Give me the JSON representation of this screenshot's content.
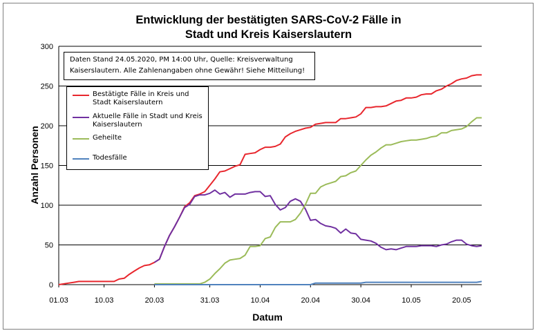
{
  "chart_data": {
    "type": "line",
    "title_line1": "Entwicklung der bestätigten SARS-CoV-2 Fälle in",
    "title_line2": "Stadt und Kreis Kaiserslautern",
    "xlabel": "Datum",
    "ylabel": "Anzahl Personen",
    "ylim": [
      0,
      300
    ],
    "yticks": [
      "0",
      "50",
      "100",
      "150",
      "200",
      "250",
      "300"
    ],
    "xlim": [
      "2020-03-01",
      "2020-05-24"
    ],
    "xticks": [
      {
        "date": "2020-03-01",
        "label": "01.03"
      },
      {
        "date": "2020-03-10",
        "label": "10.03"
      },
      {
        "date": "2020-03-20",
        "label": "20.03"
      },
      {
        "date": "2020-03-31",
        "label": "31.03"
      },
      {
        "date": "2020-04-10",
        "label": "10.04"
      },
      {
        "date": "2020-04-20",
        "label": "20.04"
      },
      {
        "date": "2020-04-30",
        "label": "30.04"
      },
      {
        "date": "2020-05-10",
        "label": "10.05"
      },
      {
        "date": "2020-05-20",
        "label": "20.05"
      }
    ],
    "grid": "horizontal",
    "legend_position": "top-left",
    "annotation": "Daten Stand 24.05.2020, PM 14:00 Uhr, Quelle: Kreisverwaltung Kaiserslautern. Alle Zahlenangaben ohne Gewähr! Siehe Mitteilung!",
    "series": [
      {
        "name": "Bestätigte Fälle in Kreis und Stadt Kaiserslautern",
        "color": "#e8262d",
        "points": [
          [
            "2020-03-01",
            0
          ],
          [
            "2020-03-02",
            1
          ],
          [
            "2020-03-03",
            2
          ],
          [
            "2020-03-04",
            3
          ],
          [
            "2020-03-05",
            4
          ],
          [
            "2020-03-06",
            4
          ],
          [
            "2020-03-07",
            4
          ],
          [
            "2020-03-08",
            4
          ],
          [
            "2020-03-09",
            4
          ],
          [
            "2020-03-10",
            4
          ],
          [
            "2020-03-11",
            4
          ],
          [
            "2020-03-12",
            4
          ],
          [
            "2020-03-13",
            7
          ],
          [
            "2020-03-14",
            8
          ],
          [
            "2020-03-15",
            13
          ],
          [
            "2020-03-16",
            17
          ],
          [
            "2020-03-17",
            21
          ],
          [
            "2020-03-18",
            24
          ],
          [
            "2020-03-19",
            25
          ],
          [
            "2020-03-20",
            28
          ],
          [
            "2020-03-21",
            32
          ],
          [
            "2020-03-22",
            48
          ],
          [
            "2020-03-23",
            62
          ],
          [
            "2020-03-24",
            73
          ],
          [
            "2020-03-25",
            85
          ],
          [
            "2020-03-26",
            98
          ],
          [
            "2020-03-27",
            103
          ],
          [
            "2020-03-28",
            112
          ],
          [
            "2020-03-29",
            114
          ],
          [
            "2020-03-30",
            117
          ],
          [
            "2020-03-31",
            125
          ],
          [
            "2020-04-01",
            133
          ],
          [
            "2020-04-02",
            142
          ],
          [
            "2020-04-03",
            143
          ],
          [
            "2020-04-04",
            146
          ],
          [
            "2020-04-05",
            149
          ],
          [
            "2020-04-06",
            151
          ],
          [
            "2020-04-07",
            164
          ],
          [
            "2020-04-08",
            165
          ],
          [
            "2020-04-09",
            166
          ],
          [
            "2020-04-10",
            170
          ],
          [
            "2020-04-11",
            173
          ],
          [
            "2020-04-12",
            173
          ],
          [
            "2020-04-13",
            174
          ],
          [
            "2020-04-14",
            177
          ],
          [
            "2020-04-15",
            186
          ],
          [
            "2020-04-16",
            190
          ],
          [
            "2020-04-17",
            193
          ],
          [
            "2020-04-18",
            195
          ],
          [
            "2020-04-19",
            197
          ],
          [
            "2020-04-20",
            198
          ],
          [
            "2020-04-21",
            202
          ],
          [
            "2020-04-22",
            203
          ],
          [
            "2020-04-23",
            204
          ],
          [
            "2020-04-24",
            204
          ],
          [
            "2020-04-25",
            204
          ],
          [
            "2020-04-26",
            209
          ],
          [
            "2020-04-27",
            209
          ],
          [
            "2020-04-28",
            210
          ],
          [
            "2020-04-29",
            211
          ],
          [
            "2020-04-30",
            215
          ],
          [
            "2020-05-01",
            223
          ],
          [
            "2020-05-02",
            223
          ],
          [
            "2020-05-03",
            224
          ],
          [
            "2020-05-04",
            224
          ],
          [
            "2020-05-05",
            225
          ],
          [
            "2020-05-06",
            228
          ],
          [
            "2020-05-07",
            231
          ],
          [
            "2020-05-08",
            232
          ],
          [
            "2020-05-09",
            235
          ],
          [
            "2020-05-10",
            235
          ],
          [
            "2020-05-11",
            236
          ],
          [
            "2020-05-12",
            239
          ],
          [
            "2020-05-13",
            240
          ],
          [
            "2020-05-14",
            240
          ],
          [
            "2020-05-15",
            244
          ],
          [
            "2020-05-16",
            246
          ],
          [
            "2020-05-17",
            250
          ],
          [
            "2020-05-18",
            253
          ],
          [
            "2020-05-19",
            257
          ],
          [
            "2020-05-20",
            259
          ],
          [
            "2020-05-21",
            260
          ],
          [
            "2020-05-22",
            263
          ],
          [
            "2020-05-23",
            264
          ],
          [
            "2020-05-24",
            264
          ]
        ]
      },
      {
        "name": "Aktuelle Fälle in Stadt und Kreis Kaiserslautern",
        "color": "#7030a0",
        "points": [
          [
            "2020-03-20",
            28
          ],
          [
            "2020-03-21",
            32
          ],
          [
            "2020-03-22",
            48
          ],
          [
            "2020-03-23",
            62
          ],
          [
            "2020-03-24",
            73
          ],
          [
            "2020-03-25",
            85
          ],
          [
            "2020-03-26",
            97
          ],
          [
            "2020-03-27",
            101
          ],
          [
            "2020-03-28",
            111
          ],
          [
            "2020-03-29",
            113
          ],
          [
            "2020-03-30",
            113
          ],
          [
            "2020-03-31",
            115
          ],
          [
            "2020-04-01",
            119
          ],
          [
            "2020-04-02",
            114
          ],
          [
            "2020-04-03",
            116
          ],
          [
            "2020-04-04",
            110
          ],
          [
            "2020-04-05",
            114
          ],
          [
            "2020-04-06",
            114
          ],
          [
            "2020-04-07",
            114
          ],
          [
            "2020-04-08",
            116
          ],
          [
            "2020-04-09",
            117
          ],
          [
            "2020-04-10",
            117
          ],
          [
            "2020-04-11",
            111
          ],
          [
            "2020-04-12",
            112
          ],
          [
            "2020-04-13",
            101
          ],
          [
            "2020-04-14",
            94
          ],
          [
            "2020-04-15",
            97
          ],
          [
            "2020-04-16",
            105
          ],
          [
            "2020-04-17",
            108
          ],
          [
            "2020-04-18",
            105
          ],
          [
            "2020-04-19",
            95
          ],
          [
            "2020-04-20",
            81
          ],
          [
            "2020-04-21",
            82
          ],
          [
            "2020-04-22",
            77
          ],
          [
            "2020-04-23",
            74
          ],
          [
            "2020-04-24",
            73
          ],
          [
            "2020-04-25",
            71
          ],
          [
            "2020-04-26",
            65
          ],
          [
            "2020-04-27",
            70
          ],
          [
            "2020-04-28",
            65
          ],
          [
            "2020-04-29",
            64
          ],
          [
            "2020-04-30",
            57
          ],
          [
            "2020-05-01",
            56
          ],
          [
            "2020-05-02",
            55
          ],
          [
            "2020-05-03",
            52
          ],
          [
            "2020-05-04",
            47
          ],
          [
            "2020-05-05",
            44
          ],
          [
            "2020-05-06",
            45
          ],
          [
            "2020-05-07",
            44
          ],
          [
            "2020-05-08",
            46
          ],
          [
            "2020-05-09",
            48
          ],
          [
            "2020-05-10",
            48
          ],
          [
            "2020-05-11",
            48
          ],
          [
            "2020-05-12",
            49
          ],
          [
            "2020-05-13",
            49
          ],
          [
            "2020-05-14",
            49
          ],
          [
            "2020-05-15",
            48
          ],
          [
            "2020-05-16",
            50
          ],
          [
            "2020-05-17",
            51
          ],
          [
            "2020-05-18",
            54
          ],
          [
            "2020-05-19",
            56
          ],
          [
            "2020-05-20",
            56
          ],
          [
            "2020-05-21",
            51
          ],
          [
            "2020-05-22",
            49
          ],
          [
            "2020-05-23",
            48
          ],
          [
            "2020-05-24",
            49
          ]
        ]
      },
      {
        "name": "Geheilte",
        "color": "#9bbb59",
        "points": [
          [
            "2020-03-20",
            1
          ],
          [
            "2020-03-21",
            1
          ],
          [
            "2020-03-22",
            1
          ],
          [
            "2020-03-23",
            1
          ],
          [
            "2020-03-24",
            1
          ],
          [
            "2020-03-25",
            1
          ],
          [
            "2020-03-26",
            1
          ],
          [
            "2020-03-27",
            1
          ],
          [
            "2020-03-28",
            1
          ],
          [
            "2020-03-29",
            1
          ],
          [
            "2020-03-30",
            3
          ],
          [
            "2020-03-31",
            7
          ],
          [
            "2020-04-01",
            14
          ],
          [
            "2020-04-02",
            20
          ],
          [
            "2020-04-03",
            27
          ],
          [
            "2020-04-04",
            31
          ],
          [
            "2020-04-05",
            32
          ],
          [
            "2020-04-06",
            33
          ],
          [
            "2020-04-07",
            37
          ],
          [
            "2020-04-08",
            48
          ],
          [
            "2020-04-09",
            48
          ],
          [
            "2020-04-10",
            49
          ],
          [
            "2020-04-11",
            58
          ],
          [
            "2020-04-12",
            60
          ],
          [
            "2020-04-13",
            72
          ],
          [
            "2020-04-14",
            79
          ],
          [
            "2020-04-15",
            79
          ],
          [
            "2020-04-16",
            79
          ],
          [
            "2020-04-17",
            82
          ],
          [
            "2020-04-18",
            90
          ],
          [
            "2020-04-19",
            101
          ],
          [
            "2020-04-20",
            115
          ],
          [
            "2020-04-21",
            115
          ],
          [
            "2020-04-22",
            123
          ],
          [
            "2020-04-23",
            126
          ],
          [
            "2020-04-24",
            128
          ],
          [
            "2020-04-25",
            130
          ],
          [
            "2020-04-26",
            136
          ],
          [
            "2020-04-27",
            137
          ],
          [
            "2020-04-28",
            141
          ],
          [
            "2020-04-29",
            143
          ],
          [
            "2020-04-30",
            150
          ],
          [
            "2020-05-01",
            157
          ],
          [
            "2020-05-02",
            163
          ],
          [
            "2020-05-03",
            167
          ],
          [
            "2020-05-04",
            172
          ],
          [
            "2020-05-05",
            176
          ],
          [
            "2020-05-06",
            176
          ],
          [
            "2020-05-07",
            178
          ],
          [
            "2020-05-08",
            180
          ],
          [
            "2020-05-09",
            181
          ],
          [
            "2020-05-10",
            182
          ],
          [
            "2020-05-11",
            182
          ],
          [
            "2020-05-12",
            183
          ],
          [
            "2020-05-13",
            184
          ],
          [
            "2020-05-14",
            186
          ],
          [
            "2020-05-15",
            187
          ],
          [
            "2020-05-16",
            191
          ],
          [
            "2020-05-17",
            191
          ],
          [
            "2020-05-18",
            194
          ],
          [
            "2020-05-19",
            195
          ],
          [
            "2020-05-20",
            196
          ],
          [
            "2020-05-21",
            199
          ],
          [
            "2020-05-22",
            205
          ],
          [
            "2020-05-23",
            210
          ],
          [
            "2020-05-24",
            210
          ]
        ]
      },
      {
        "name": "Todesfälle",
        "color": "#4f81bd",
        "points": [
          [
            "2020-03-20",
            0
          ],
          [
            "2020-03-25",
            0
          ],
          [
            "2020-03-30",
            0
          ],
          [
            "2020-04-05",
            0
          ],
          [
            "2020-04-10",
            0
          ],
          [
            "2020-04-15",
            0
          ],
          [
            "2020-04-20",
            0
          ],
          [
            "2020-04-21",
            2
          ],
          [
            "2020-04-25",
            2
          ],
          [
            "2020-04-30",
            2
          ],
          [
            "2020-05-01",
            3
          ],
          [
            "2020-05-05",
            3
          ],
          [
            "2020-05-10",
            3
          ],
          [
            "2020-05-15",
            3
          ],
          [
            "2020-05-20",
            3
          ],
          [
            "2020-05-23",
            3
          ],
          [
            "2020-05-24",
            4
          ]
        ]
      }
    ]
  }
}
